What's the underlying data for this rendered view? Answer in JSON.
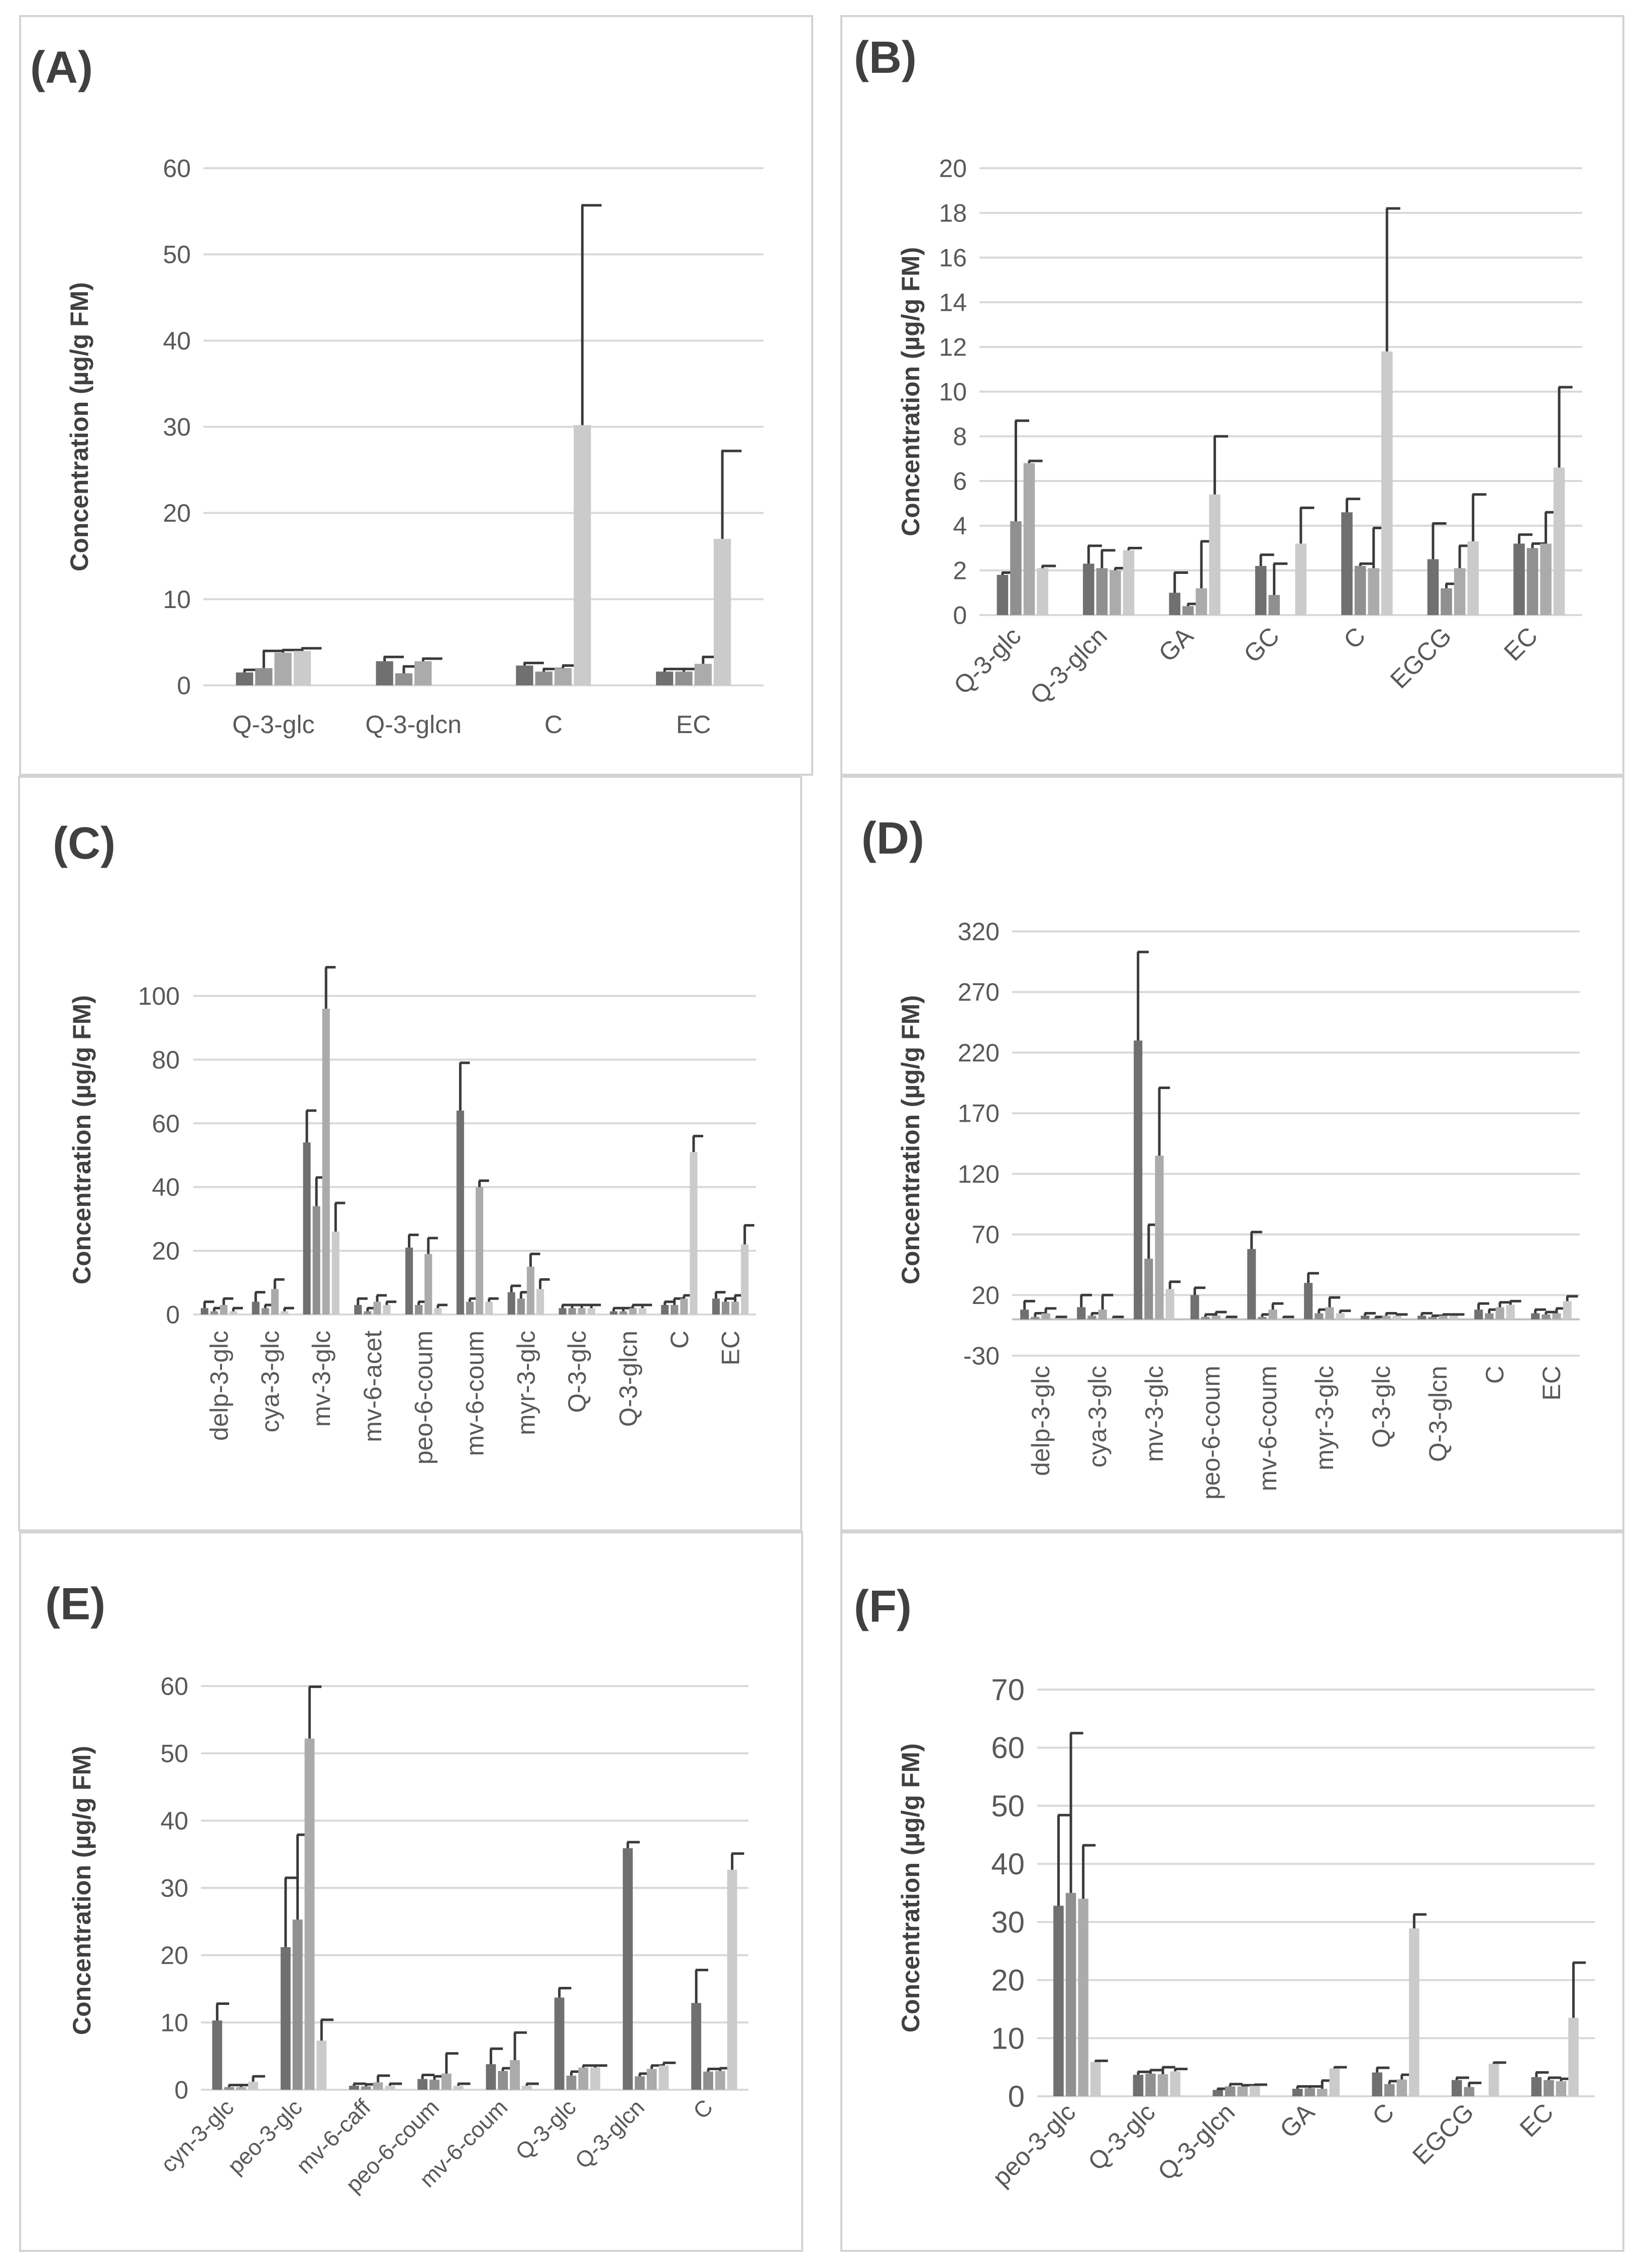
{
  "colors": {
    "s1": "#707070",
    "s2": "#909090",
    "s3": "#ababab",
    "s4": "#cbcbcb",
    "grid": "#d9d9d9",
    "text": "#595959",
    "label": "#404040",
    "err": "#3a3a3a"
  },
  "chart_data": [
    {
      "type": "bar",
      "panel": "(A)",
      "ylabel": "Concentration (µg/g FM)",
      "ylim": [
        0,
        60
      ],
      "yticks": [
        0,
        10,
        20,
        30,
        40,
        50,
        60
      ],
      "categories": [
        "Q-3-glc",
        "Q-3-glcn",
        "C",
        "EC"
      ],
      "series": [
        {
          "values": [
            1.5,
            2.8,
            2.3,
            1.6
          ],
          "errors": [
            0.3,
            0.5,
            0.3,
            0.3
          ]
        },
        {
          "values": [
            2.0,
            1.4,
            1.6,
            1.6
          ],
          "errors": [
            2.0,
            0.8,
            0.3,
            0.3
          ]
        },
        {
          "values": [
            3.8,
            2.8,
            2.0,
            2.5
          ],
          "errors": [
            0.3,
            0.3,
            0.3,
            0.8
          ]
        },
        {
          "values": [
            4.0,
            null,
            30.2,
            17.0
          ],
          "errors": [
            0.3,
            null,
            25.5,
            10.2
          ]
        }
      ]
    },
    {
      "type": "bar",
      "panel": "(B)",
      "ylabel": "Concentration (µg/g FM)",
      "ylim": [
        0,
        20
      ],
      "yticks": [
        0,
        2,
        4,
        6,
        8,
        10,
        12,
        14,
        16,
        18,
        20
      ],
      "categories": [
        "Q-3-glc",
        "Q-3-glcn",
        "GA",
        "GC",
        "C",
        "EGCG",
        "EC"
      ],
      "series": [
        {
          "values": [
            1.8,
            2.3,
            1.0,
            2.2,
            4.6,
            2.5,
            3.2
          ],
          "errors": [
            0.1,
            0.8,
            0.9,
            0.5,
            0.6,
            1.6,
            0.4
          ]
        },
        {
          "values": [
            4.2,
            2.1,
            0.4,
            0.9,
            2.2,
            1.2,
            3.0
          ],
          "errors": [
            4.5,
            0.8,
            0.1,
            1.4,
            0.1,
            0.2,
            0.2
          ]
        },
        {
          "values": [
            6.8,
            2.0,
            1.2,
            null,
            2.1,
            2.1,
            3.2
          ],
          "errors": [
            0.1,
            0.1,
            2.1,
            null,
            1.8,
            1.0,
            1.4
          ]
        },
        {
          "values": [
            2.1,
            2.9,
            5.4,
            3.2,
            11.8,
            3.3,
            6.6
          ],
          "errors": [
            0.1,
            0.1,
            2.6,
            1.6,
            6.4,
            2.1,
            3.6
          ]
        }
      ]
    },
    {
      "type": "bar",
      "panel": "(C)",
      "ylabel": "Concentration (µg/g FM)",
      "ylim": [
        0,
        110
      ],
      "yticks": [
        0,
        20,
        40,
        60,
        80,
        100
      ],
      "categories": [
        "delp-3-glc",
        "cya-3-glc",
        "mv-3-glc",
        "mv-6-acet",
        "peo-6-coum",
        "mv-6-coum",
        "myr-3-glc",
        "Q-3-glc",
        "Q-3-glcn",
        "C",
        "EC"
      ],
      "series": [
        {
          "values": [
            2,
            4,
            54,
            3,
            21,
            64,
            7,
            2,
            1,
            3,
            5
          ],
          "errors": [
            2,
            3,
            10,
            2,
            4,
            15,
            2,
            1,
            1,
            1,
            2
          ]
        },
        {
          "values": [
            1,
            2,
            34,
            1,
            3,
            4,
            5,
            2,
            1,
            3,
            4
          ],
          "errors": [
            1,
            1,
            9,
            1,
            1,
            1,
            2,
            1,
            1,
            2,
            1
          ]
        },
        {
          "values": [
            3,
            8,
            96,
            4,
            19,
            40,
            15,
            2,
            2,
            5,
            4
          ],
          "errors": [
            2,
            3,
            13,
            2,
            5,
            2,
            4,
            1,
            1,
            1,
            2
          ]
        },
        {
          "values": [
            1,
            1,
            26,
            3,
            2,
            4,
            8,
            2,
            2,
            51,
            22
          ],
          "errors": [
            1,
            1,
            9,
            1,
            1,
            1,
            3,
            1,
            1,
            5,
            6
          ]
        }
      ]
    },
    {
      "type": "bar",
      "panel": "(D)",
      "ylabel": "Concentration (µg/g FM)",
      "ylim": [
        -30,
        320
      ],
      "yticks": [
        -30,
        20,
        70,
        120,
        170,
        220,
        270,
        320
      ],
      "categories": [
        "delp-3-glc",
        "cya-3-glc",
        "mv-3-glc",
        "peo-6-coum",
        "mv-6-coum",
        "myr-3-glc",
        "Q-3-glc",
        "Q-3-glcn",
        "C",
        "EC"
      ],
      "series": [
        {
          "values": [
            8,
            10,
            230,
            20,
            58,
            30,
            3,
            3,
            8,
            5
          ],
          "errors": [
            7,
            10,
            73,
            6,
            14,
            8,
            2,
            2,
            5,
            3
          ]
        },
        {
          "values": [
            2,
            3,
            50,
            2,
            2,
            5,
            1,
            2,
            5,
            4
          ],
          "errors": [
            3,
            2,
            28,
            2,
            2,
            3,
            1,
            1,
            3,
            2
          ]
        },
        {
          "values": [
            5,
            8,
            135,
            3,
            8,
            10,
            3,
            3,
            10,
            5
          ],
          "errors": [
            4,
            12,
            56,
            3,
            5,
            8,
            2,
            1,
            4,
            4
          ]
        },
        {
          "values": [
            1,
            1,
            25,
            1,
            1,
            5,
            3,
            3,
            12,
            15
          ],
          "errors": [
            1,
            1,
            6,
            1,
            1,
            2,
            1,
            1,
            3,
            4
          ]
        }
      ]
    },
    {
      "type": "bar",
      "panel": "(E)",
      "ylabel": "Concentration (µg/g FM)",
      "ylim": [
        0,
        60
      ],
      "yticks": [
        0,
        10,
        20,
        30,
        40,
        50,
        60
      ],
      "categories": [
        "cyn-3-glc",
        "peo-3-glc",
        "mv-6-caff",
        "peo-6-coum",
        "mv-6-coum",
        "Q-3-glc",
        "Q-3-glcn",
        "C"
      ],
      "series": [
        {
          "values": [
            10.3,
            21.2,
            0.6,
            1.6,
            3.8,
            13.7,
            35.9,
            12.9
          ],
          "errors": [
            2.5,
            10.3,
            0.3,
            0.6,
            2.3,
            1.4,
            0.9,
            4.9
          ]
        },
        {
          "values": [
            0.4,
            25.3,
            0.5,
            1.5,
            2.8,
            2.1,
            2.0,
            2.7
          ],
          "errors": [
            0.3,
            12.6,
            0.3,
            0.5,
            0.4,
            0.6,
            0.4,
            0.4
          ]
        },
        {
          "values": [
            0.4,
            52.2,
            1.1,
            2.4,
            4.4,
            3.3,
            3.1,
            2.8
          ],
          "errors": [
            0.3,
            7.7,
            1.0,
            3.0,
            4.1,
            0.3,
            0.5,
            0.4
          ]
        },
        {
          "values": [
            1.2,
            7.3,
            0.6,
            0.6,
            0.6,
            3.3,
            3.6,
            32.7
          ],
          "errors": [
            0.8,
            3.1,
            0.3,
            0.3,
            0.3,
            0.3,
            0.4,
            2.4
          ]
        }
      ]
    },
    {
      "type": "bar",
      "panel": "(F)",
      "ylabel": "Concentration (µg/g FM)",
      "ylim": [
        0,
        70
      ],
      "yticks": [
        0,
        10,
        20,
        30,
        40,
        50,
        60,
        70
      ],
      "categories": [
        "peo-3-glc",
        "Q-3-glc",
        "Q-3-glcn",
        "GA",
        "C",
        "EGCG",
        "EC"
      ],
      "series": [
        {
          "values": [
            32.8,
            3.7,
            1.1,
            1.3,
            4.1,
            2.8,
            3.3
          ],
          "errors": [
            15.6,
            0.5,
            0.2,
            0.4,
            0.8,
            0.4,
            0.8
          ]
        },
        {
          "values": [
            35.0,
            3.9,
            1.7,
            1.4,
            2.1,
            1.6,
            2.8
          ],
          "errors": [
            27.5,
            0.6,
            0.4,
            0.3,
            0.5,
            0.7,
            0.4
          ]
        },
        {
          "values": [
            34.0,
            3.8,
            1.7,
            1.3,
            2.9,
            null,
            2.6
          ],
          "errors": [
            9.2,
            1.2,
            0.2,
            1.4,
            0.8,
            null,
            0.4
          ]
        },
        {
          "values": [
            5.9,
            4.3,
            1.8,
            4.8,
            28.9,
            5.6,
            13.5
          ],
          "errors": [
            0.2,
            0.4,
            0.2,
            0.2,
            2.4,
            0.2,
            9.5
          ]
        }
      ]
    }
  ]
}
